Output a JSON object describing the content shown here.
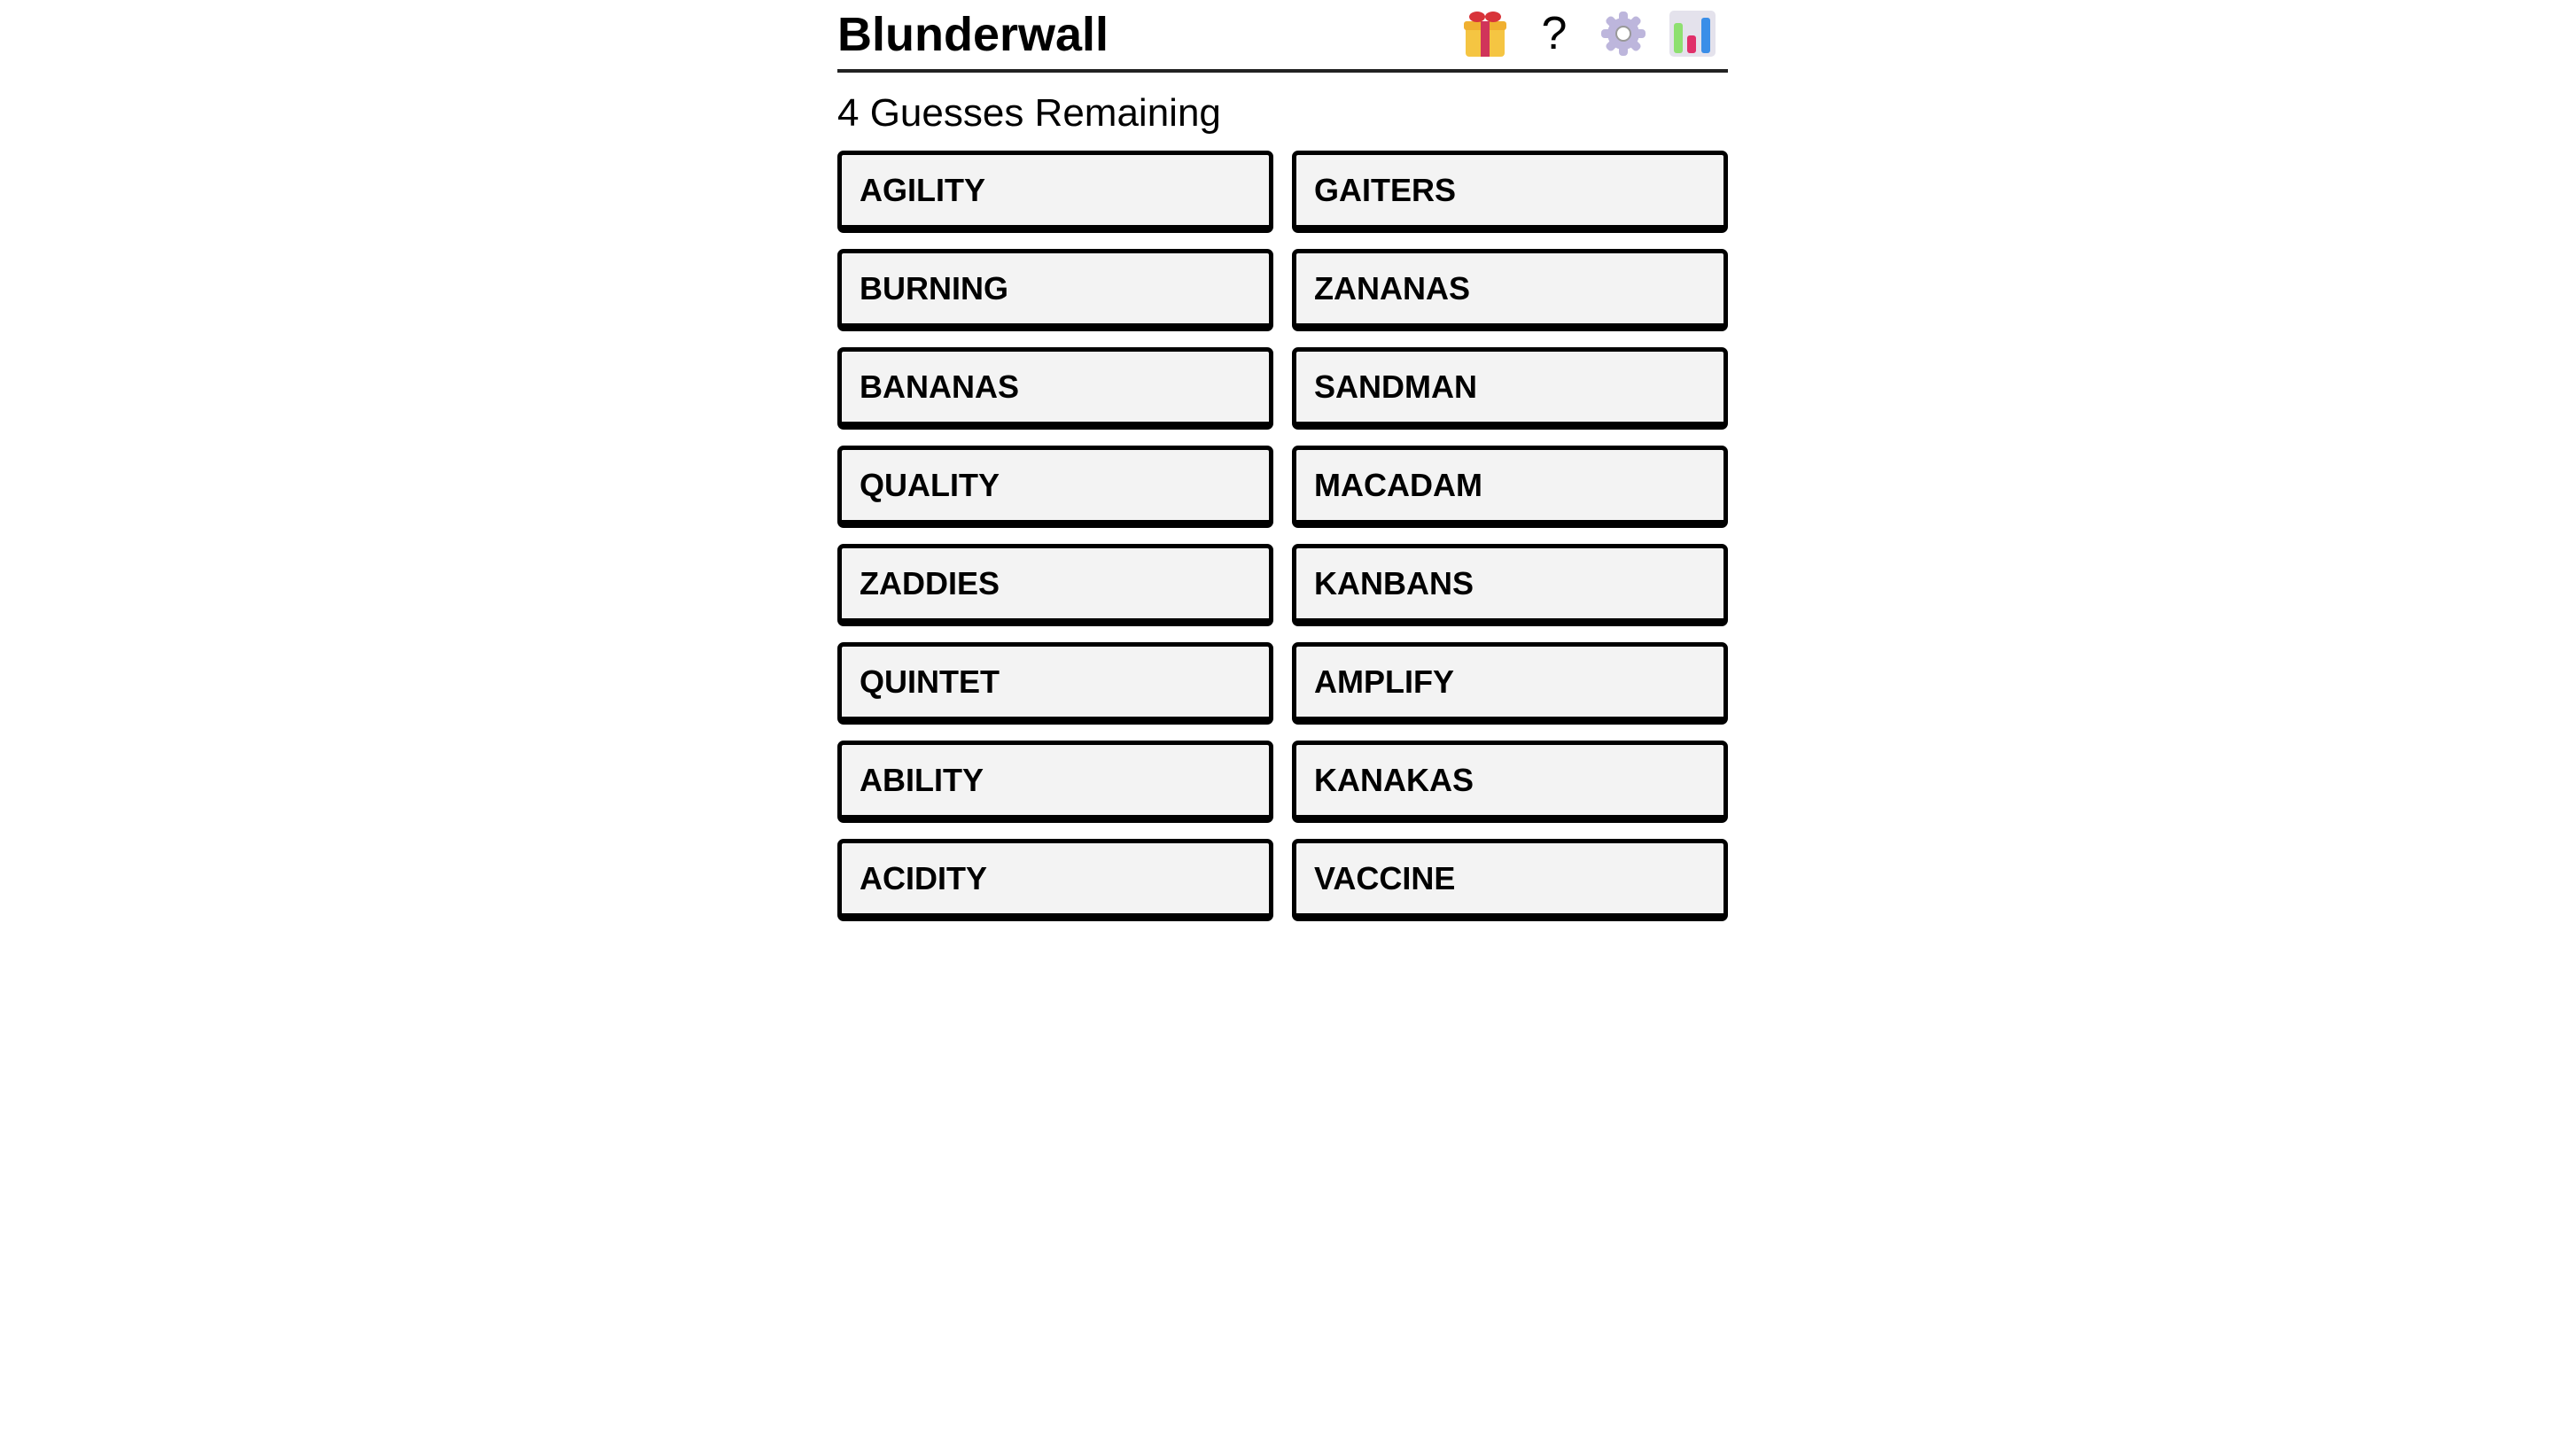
{
  "header": {
    "title": "Blunderwall",
    "icons": [
      "gift-icon",
      "help-icon",
      "gear-icon",
      "stats-chart-icon"
    ],
    "help_glyph": "?"
  },
  "status": "4 Guesses Remaining",
  "tiles": [
    "AGILITY",
    "GAITERS",
    "BURNING",
    "ZANANAS",
    "BANANAS",
    "SANDMAN",
    "QUALITY",
    "MACADAM",
    "ZADDIES",
    "KANBANS",
    "QUINTET",
    "AMPLIFY",
    "ABILITY",
    "KANAKAS",
    "ACIDITY",
    "VACCINE"
  ]
}
